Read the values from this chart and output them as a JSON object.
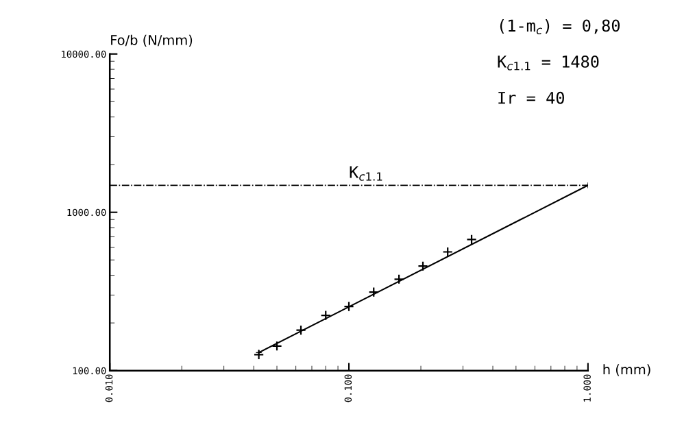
{
  "chart_data": {
    "type": "scatter",
    "log": "xy",
    "xlabel": "h (mm)",
    "ylabel": "Fo/b (N/mm)",
    "xlim": [
      0.01,
      1.0
    ],
    "ylim": [
      100,
      10000
    ],
    "xticks": [
      {
        "value": 0.01,
        "label": "0.010"
      },
      {
        "value": 0.1,
        "label": "0.100"
      },
      {
        "value": 1.0,
        "label": "1.000"
      }
    ],
    "yticks": [
      {
        "value": 100,
        "label": "100.00"
      },
      {
        "value": 1000,
        "label": "1000.00"
      },
      {
        "value": 10000,
        "label": "10000.00"
      }
    ],
    "grid": false,
    "marker": "cross",
    "series": [
      {
        "color": "#000000",
        "x": [
          0.042,
          0.05,
          0.063,
          0.08,
          0.1,
          0.127,
          0.162,
          0.204,
          0.259,
          0.326
        ],
        "values": [
          126,
          143,
          180,
          223,
          254,
          313,
          378,
          457,
          562,
          673
        ]
      },
      {
        "type": "line",
        "color": "#000000",
        "x": [
          0.042,
          1.0
        ],
        "values": [
          130,
          1480
        ]
      }
    ],
    "ref_lines": [
      {
        "axis": "y",
        "value": 1480,
        "label": "K$_{c1.1}$",
        "color": "#000000",
        "line_style": "dashdot"
      }
    ],
    "annotations": [
      "(1-m$_{c}$) = 0,80",
      "K$_{c1.1}$ = 1480",
      "Ir = 40"
    ]
  }
}
